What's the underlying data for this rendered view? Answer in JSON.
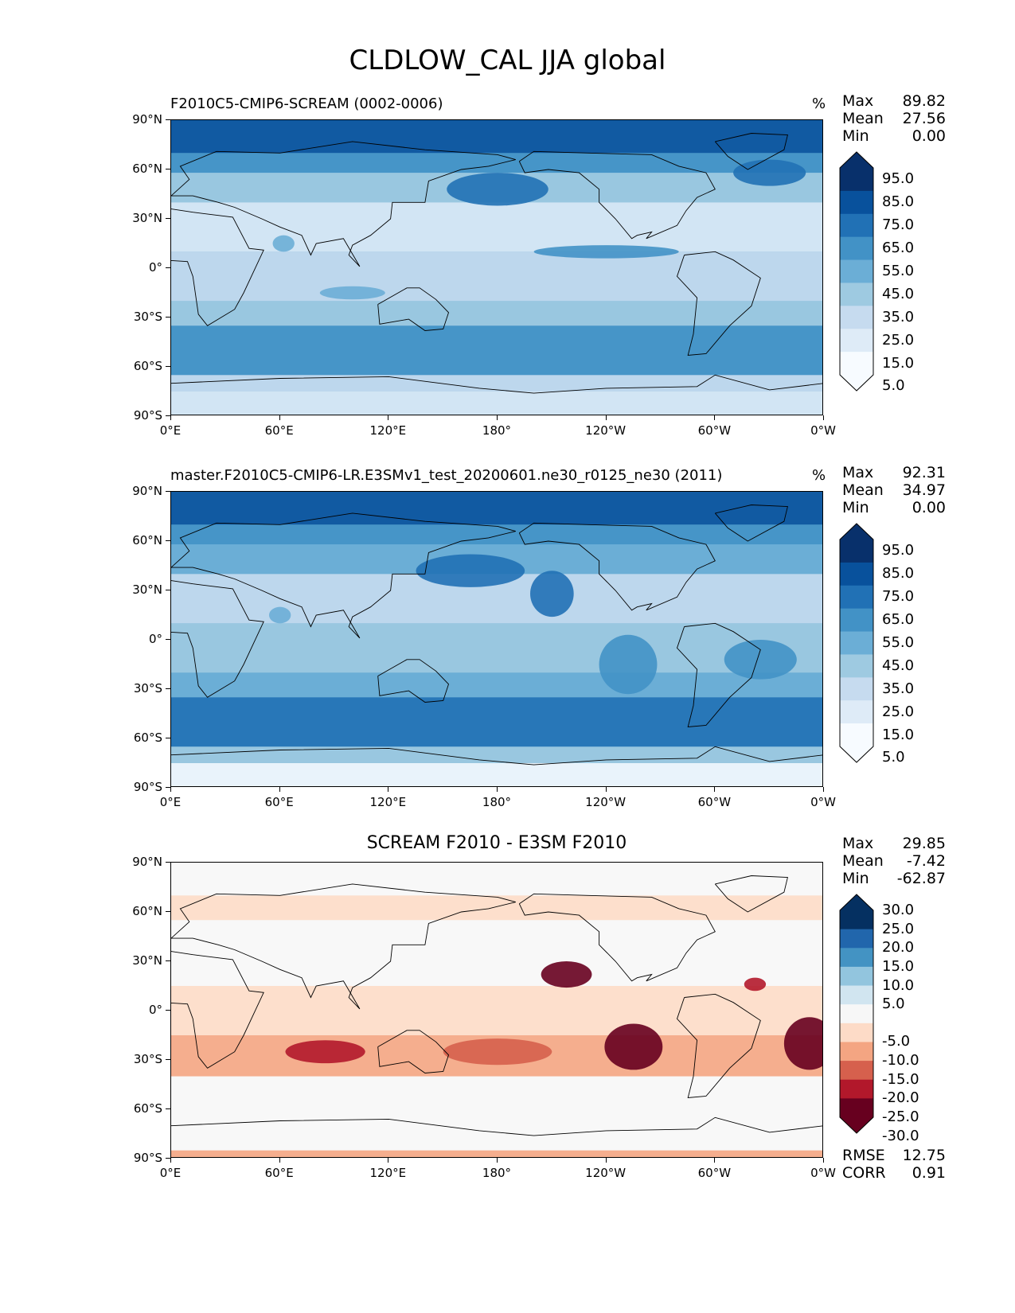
{
  "figure_title": "CLDLOW_CAL JJA global",
  "panels": [
    {
      "title": "F2010C5-CMIP6-SCREAM (0002-0006)",
      "units": "%",
      "stats": [
        {
          "label": "Max",
          "value": "89.82"
        },
        {
          "label": "Mean",
          "value": "27.56"
        },
        {
          "label": "Min",
          "value": "0.00"
        }
      ],
      "colorbar_ticks": [
        "95.0",
        "85.0",
        "75.0",
        "65.0",
        "55.0",
        "45.0",
        "35.0",
        "25.0",
        "15.0",
        "5.0"
      ],
      "colors": [
        "#08306b",
        "#08519c",
        "#2171b5",
        "#4292c6",
        "#6baed6",
        "#9ecae1",
        "#c6dbef",
        "#deebf7",
        "#f7fbff"
      ],
      "extra_stats": []
    },
    {
      "title": "master.F2010C5-CMIP6-LR.E3SMv1_test_20200601.ne30_r0125_ne30 (2011)",
      "units": "%",
      "stats": [
        {
          "label": "Max",
          "value": "92.31"
        },
        {
          "label": "Mean",
          "value": "34.97"
        },
        {
          "label": "Min",
          "value": "0.00"
        }
      ],
      "colorbar_ticks": [
        "95.0",
        "85.0",
        "75.0",
        "65.0",
        "55.0",
        "45.0",
        "35.0",
        "25.0",
        "15.0",
        "5.0"
      ],
      "colors": [
        "#08306b",
        "#08519c",
        "#2171b5",
        "#4292c6",
        "#6baed6",
        "#9ecae1",
        "#c6dbef",
        "#deebf7",
        "#f7fbff"
      ],
      "extra_stats": []
    },
    {
      "title": "SCREAM F2010 - E3SM F2010",
      "units": "",
      "stats": [
        {
          "label": "Max",
          "value": "29.85"
        },
        {
          "label": "Mean",
          "value": "-7.42"
        },
        {
          "label": "Min",
          "value": "-62.87"
        }
      ],
      "colorbar_ticks": [
        "30.0",
        "25.0",
        "20.0",
        "15.0",
        "10.0",
        "5.0",
        "-5.0",
        "-10.0",
        "-15.0",
        "-20.0",
        "-25.0",
        "-30.0"
      ],
      "colors": [
        "#053061",
        "#2166ac",
        "#4393c3",
        "#92c5de",
        "#d1e5f0",
        "#f7f7f7",
        "#fddbc7",
        "#f4a582",
        "#d6604d",
        "#b2182b",
        "#67001f"
      ],
      "extra_stats": [
        {
          "label": "RMSE",
          "value": "12.75"
        },
        {
          "label": "CORR",
          "value": "0.91"
        }
      ]
    }
  ],
  "axes": {
    "lat_ticks": [
      "90°N",
      "60°N",
      "30°N",
      "0°",
      "30°S",
      "60°S",
      "90°S"
    ],
    "lon_ticks": [
      "0°E",
      "60°E",
      "120°E",
      "180°",
      "120°W",
      "60°W",
      "0°W"
    ]
  },
  "chart_data": [
    {
      "type": "heatmap",
      "title": "F2010C5-CMIP6-SCREAM (0002-0006)",
      "variable": "CLDLOW_CAL",
      "season": "JJA",
      "units": "%",
      "xlim": [
        0,
        360
      ],
      "ylim": [
        -90,
        90
      ],
      "contour_levels": [
        5,
        15,
        25,
        35,
        45,
        55,
        65,
        75,
        85,
        95
      ],
      "max": 89.82,
      "mean": 27.56,
      "min": 0.0
    },
    {
      "type": "heatmap",
      "title": "master.F2010C5-CMIP6-LR.E3SMv1_test_20200601.ne30_r0125_ne30 (2011)",
      "variable": "CLDLOW_CAL",
      "season": "JJA",
      "units": "%",
      "xlim": [
        0,
        360
      ],
      "ylim": [
        -90,
        90
      ],
      "contour_levels": [
        5,
        15,
        25,
        35,
        45,
        55,
        65,
        75,
        85,
        95
      ],
      "max": 92.31,
      "mean": 34.97,
      "min": 0.0
    },
    {
      "type": "heatmap",
      "title": "SCREAM F2010 - E3SM F2010",
      "variable": "CLDLOW_CAL",
      "season": "JJA",
      "xlim": [
        0,
        360
      ],
      "ylim": [
        -90,
        90
      ],
      "contour_levels": [
        -30,
        -25,
        -20,
        -15,
        -10,
        -5,
        5,
        10,
        15,
        20,
        25,
        30
      ],
      "max": 29.85,
      "mean": -7.42,
      "min": -62.87,
      "rmse": 12.75,
      "corr": 0.91
    }
  ]
}
